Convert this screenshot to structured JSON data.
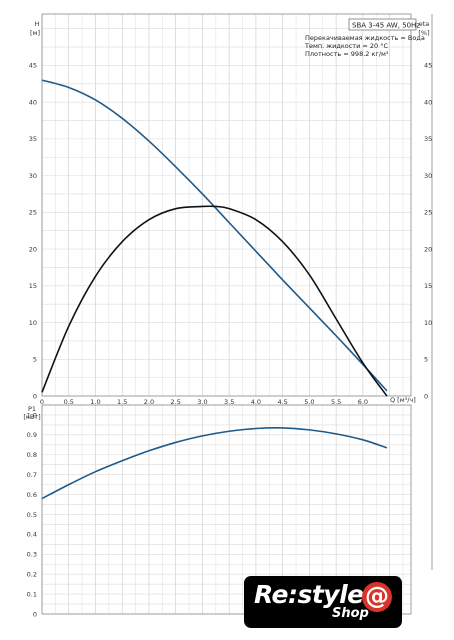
{
  "chart_data": [
    {
      "type": "line",
      "title": "SBA 3-45 AW, 50Hz",
      "properties": [
        "Перекачиваемая жидкость = Вода",
        "Темп. жидкости = 20 °C",
        "Плотность = 998.2 кг/м³"
      ],
      "xlabel": "Q [м³/ч]",
      "ylabel": "H",
      "ylabel_unit": "[м]",
      "y2label": "eta",
      "y2label_unit": "[%]",
      "xlim": [
        0,
        6.9
      ],
      "ylim": [
        0,
        52
      ],
      "xticks": [
        "0",
        "0.5",
        "1.0",
        "1.5",
        "2.0",
        "2.5",
        "3.0",
        "3.5",
        "4.0",
        "4.5",
        "5.0",
        "5.5",
        "6.0"
      ],
      "yticks": [
        "0",
        "5",
        "10",
        "15",
        "20",
        "25",
        "30",
        "35",
        "40",
        "45"
      ],
      "series": [
        {
          "color": "#1f5a8a",
          "x": [
            0,
            0.5,
            1.0,
            1.5,
            2.0,
            2.5,
            3.0,
            3.5,
            4.0,
            4.5,
            5.0,
            5.5,
            6.0,
            6.45
          ],
          "y": [
            43,
            42,
            40.3,
            37.8,
            34.7,
            31.2,
            27.5,
            23.6,
            19.7,
            15.8,
            12.0,
            8.2,
            4.3,
            0.7
          ]
        },
        {
          "color": "#111111",
          "x": [
            0,
            0.5,
            1.0,
            1.5,
            2.0,
            2.5,
            3.0,
            3.25,
            3.5,
            4.0,
            4.5,
            5.0,
            5.5,
            6.0,
            6.45
          ],
          "y": [
            0.5,
            9.5,
            16.3,
            21.0,
            24.0,
            25.5,
            25.8,
            25.8,
            25.5,
            24.0,
            21.0,
            16.5,
            10.5,
            4.5,
            0
          ]
        }
      ]
    },
    {
      "type": "line",
      "ylabel": "P1",
      "ylabel_unit": "[кВт]",
      "xlim": [
        0,
        6.9
      ],
      "ylim": [
        0,
        1.05
      ],
      "yticks": [
        "0",
        "0.1",
        "0.2",
        "0.3",
        "0.4",
        "0.5",
        "0.6",
        "0.7",
        "0.8",
        "0.9",
        "1.0"
      ],
      "series": [
        {
          "color": "#1f5a8a",
          "x": [
            0,
            0.5,
            1.0,
            1.5,
            2.0,
            2.5,
            3.0,
            3.5,
            4.0,
            4.5,
            5.0,
            5.5,
            6.0,
            6.45
          ],
          "y": [
            0.58,
            0.65,
            0.715,
            0.77,
            0.82,
            0.862,
            0.895,
            0.918,
            0.932,
            0.935,
            0.925,
            0.905,
            0.875,
            0.835
          ]
        }
      ]
    }
  ],
  "logo": {
    "main": "Re:style",
    "sub": "Shop",
    "symbol": "@"
  }
}
